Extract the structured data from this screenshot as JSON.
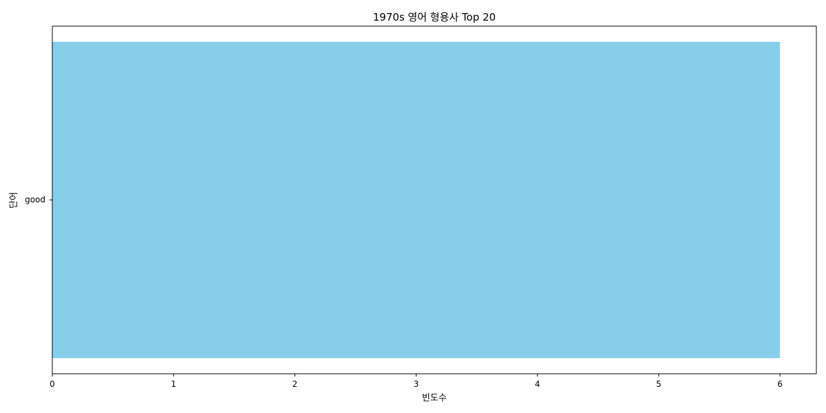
{
  "chart_data": {
    "type": "bar",
    "orientation": "horizontal",
    "title": "1970s 영어 형용사 Top 20",
    "xlabel": "빈도수",
    "ylabel": "단어",
    "categories": [
      "good"
    ],
    "values": [
      6
    ],
    "xlim": [
      0,
      6.3
    ],
    "xticks": [
      0,
      1,
      2,
      3,
      4,
      5,
      6
    ],
    "bar_color": "#87ceeb",
    "grid": false,
    "legend": "none"
  }
}
